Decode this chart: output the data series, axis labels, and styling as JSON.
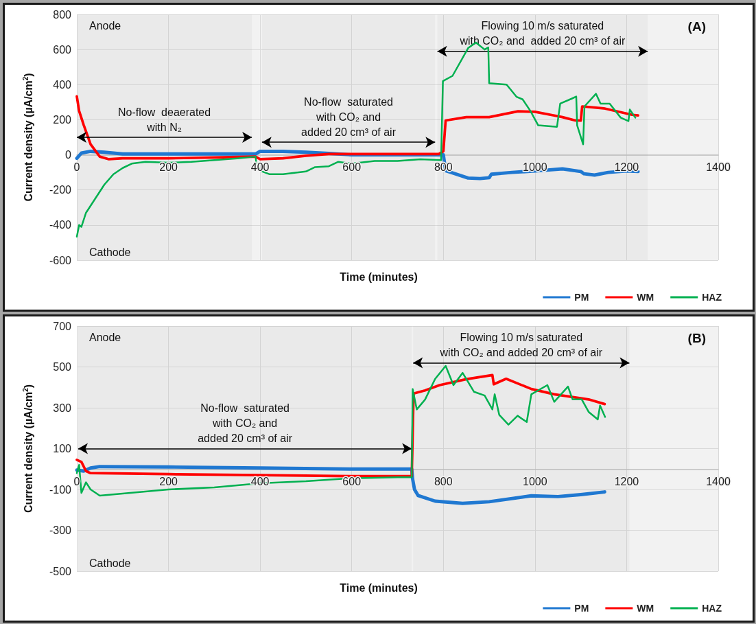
{
  "chart_data": [
    {
      "type": "line",
      "xlabel": "Time (minutes)",
      "ylabel": "Current density (µA/cm$^{2}$)",
      "annotations": [
        "Anode",
        "Cathode",
        "(A)"
      ],
      "bands": [
        {
          "axis": "x",
          "from": 0,
          "to": 382,
          "label": "No-flow  deaerated\nwith N₂"
        },
        {
          "axis": "x",
          "from": 404,
          "to": 782,
          "label": "No-flow  saturated\nwith CO₂ and\nadded 20 cm³ of air"
        },
        {
          "axis": "x",
          "from": 787,
          "to": 1246,
          "label": "Flowing 10 m/s saturated\nwith CO₂ and  added 20 cm³ of air"
        }
      ],
      "xlim": [
        0,
        1400
      ],
      "xticks": [
        0,
        200,
        400,
        600,
        800,
        1000,
        1200,
        1400
      ],
      "ylim": [
        -600,
        800
      ],
      "yticks": [
        -600,
        -400,
        -200,
        0,
        200,
        400,
        600,
        800
      ],
      "grid": true,
      "legend": "bottom right",
      "marker": "none",
      "line_style": "solid",
      "series": [
        {
          "name": "PM",
          "color": "#1f78d1",
          "x": [
            0,
            10,
            30,
            60,
            100,
            200,
            300,
            390,
            400,
            450,
            500,
            550,
            600,
            700,
            790,
            800,
            805,
            854,
            880,
            900,
            905,
            950,
            1000,
            1060,
            1100,
            1107,
            1130,
            1160,
            1200,
            1225
          ],
          "values": [
            -20,
            10,
            20,
            15,
            5,
            5,
            5,
            5,
            20,
            20,
            15,
            8,
            0,
            0,
            0,
            0,
            -90,
            -132,
            -135,
            -130,
            -110,
            -100,
            -92,
            -80,
            -95,
            -108,
            -115,
            -100,
            -92,
            -95
          ]
        },
        {
          "name": "WM",
          "color": "#ff0000",
          "x": [
            0,
            5,
            15,
            30,
            50,
            70,
            100,
            200,
            300,
            390,
            400,
            450,
            500,
            550,
            600,
            700,
            790,
            800,
            805,
            850,
            900,
            963,
            1000,
            1040,
            1060,
            1088,
            1100,
            1103,
            1150,
            1212,
            1225
          ],
          "values": [
            333,
            250,
            170,
            60,
            -10,
            -25,
            -20,
            -20,
            -15,
            -10,
            -25,
            -20,
            -5,
            5,
            5,
            5,
            5,
            20,
            196,
            215,
            215,
            248,
            245,
            225,
            215,
            196,
            195,
            276,
            265,
            228,
            225
          ]
        },
        {
          "name": "HAZ",
          "color": "#00b050",
          "x": [
            0,
            5,
            10,
            20,
            40,
            60,
            80,
            100,
            120,
            150,
            200,
            250,
            300,
            350,
            390,
            392,
            400,
            420,
            450,
            500,
            520,
            550,
            570,
            600,
            650,
            700,
            750,
            795,
            799,
            820,
            854,
            871,
            890,
            898,
            900,
            938,
            960,
            973,
            990,
            1007,
            1048,
            1055,
            1080,
            1090,
            1092,
            1105,
            1108,
            1133,
            1143,
            1163,
            1187,
            1204,
            1207,
            1219
          ],
          "values": [
            -466,
            -400,
            -410,
            -330,
            -250,
            -170,
            -110,
            -75,
            -50,
            -40,
            -45,
            -40,
            -30,
            -20,
            -10,
            -50,
            -90,
            -110,
            -110,
            -95,
            -70,
            -65,
            -40,
            -50,
            -35,
            -35,
            -25,
            -30,
            420,
            450,
            608,
            640,
            600,
            612,
            408,
            400,
            330,
            316,
            250,
            168,
            160,
            292,
            320,
            332,
            168,
            60,
            276,
            348,
            292,
            292,
            212,
            192,
            258,
            212
          ]
        }
      ]
    },
    {
      "type": "line",
      "xlabel": "Time (minutes)",
      "ylabel": "Current density (µA/cm$^{2}$)",
      "annotations": [
        "Anode",
        "Cathode",
        "(B)"
      ],
      "bands": [
        {
          "axis": "x",
          "from": 3,
          "to": 731,
          "label": "No-flow  saturated\nwith CO₂ and\nadded 20 cm³ of air"
        },
        {
          "axis": "x",
          "from": 734,
          "to": 1206,
          "label": "Flowing 10 m/s saturated\nwith CO₂ and added 20 cm³ of air"
        }
      ],
      "xlim": [
        0,
        1400
      ],
      "xticks": [
        0,
        200,
        400,
        600,
        800,
        1000,
        1200,
        1400
      ],
      "ylim": [
        -500,
        700
      ],
      "yticks": [
        -500,
        -300,
        -100,
        100,
        300,
        500,
        700
      ],
      "grid": true,
      "legend": "bottom right",
      "marker": "none",
      "line_style": "solid",
      "series": [
        {
          "name": "PM",
          "color": "#1f78d1",
          "x": [
            0,
            15,
            30,
            50,
            200,
            400,
            600,
            731,
            733,
            737,
            745,
            782,
            842,
            900,
            992,
            1050,
            1100,
            1152
          ],
          "values": [
            -5,
            -10,
            5,
            12,
            10,
            5,
            0,
            0,
            -50,
            -100,
            -130,
            -157,
            -168,
            -160,
            -131,
            -135,
            -125,
            -112
          ]
        },
        {
          "name": "WM",
          "color": "#ff0000",
          "x": [
            0,
            10,
            20,
            30,
            200,
            400,
            600,
            731,
            735,
            760,
            792,
            850,
            907,
            910,
            937,
            992,
            1042,
            1117,
            1152
          ],
          "values": [
            45,
            35,
            -10,
            -20,
            -25,
            -30,
            -35,
            -35,
            370,
            385,
            411,
            440,
            460,
            415,
            442,
            392,
            366,
            341,
            318
          ]
        },
        {
          "name": "HAZ",
          "color": "#00b050",
          "x": [
            0,
            5,
            10,
            20,
            30,
            50,
            100,
            200,
            300,
            400,
            500,
            600,
            700,
            731,
            733,
            742,
            760,
            782,
            805,
            822,
            842,
            867,
            890,
            907,
            912,
            922,
            942,
            962,
            982,
            992,
            1027,
            1042,
            1072,
            1082,
            1102,
            1117,
            1137,
            1142,
            1153
          ],
          "values": [
            -20,
            20,
            -117,
            -65,
            -100,
            -130,
            -120,
            -100,
            -90,
            -70,
            -60,
            -45,
            -40,
            -40,
            392,
            292,
            340,
            441,
            505,
            411,
            471,
            378,
            360,
            292,
            366,
            265,
            217,
            261,
            230,
            366,
            411,
            329,
            404,
            341,
            341,
            280,
            243,
            311,
            255
          ]
        }
      ]
    }
  ]
}
